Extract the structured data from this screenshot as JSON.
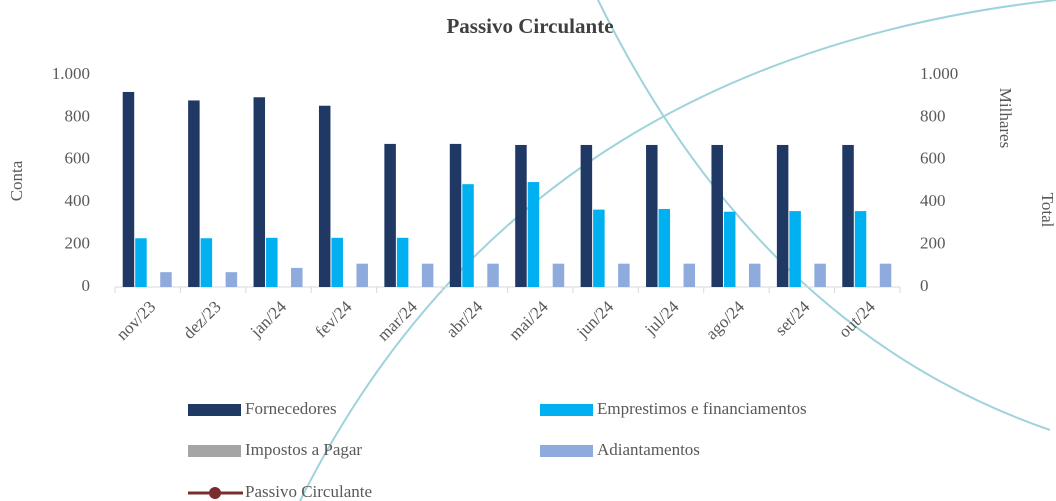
{
  "chart_data": {
    "type": "bar",
    "title": "Passivo Circulante",
    "categories": [
      "nov/23",
      "dez/23",
      "jan/24",
      "fev/24",
      "mar/24",
      "abr/24",
      "mai/24",
      "jun/24",
      "jul/24",
      "ago/24",
      "set/24",
      "out/24"
    ],
    "series": [
      {
        "name": "Fornecedores",
        "color": "#1f3864",
        "values": [
          920,
          880,
          895,
          855,
          675,
          675,
          670,
          670,
          670,
          670,
          670,
          670
        ]
      },
      {
        "name": "Emprestimos e financiamentos",
        "color": "#00b0f0",
        "values": [
          230,
          230,
          232,
          232,
          232,
          485,
          495,
          365,
          368,
          355,
          358,
          358
        ]
      },
      {
        "name": "Impostos a Pagar",
        "color": "#a5a5a5",
        "values": [
          0,
          0,
          0,
          0,
          0,
          0,
          0,
          0,
          0,
          0,
          0,
          0
        ]
      },
      {
        "name": "Adiantamentos",
        "color": "#8faadc",
        "values": [
          70,
          70,
          90,
          110,
          110,
          110,
          110,
          110,
          110,
          110,
          110,
          110
        ]
      },
      {
        "name": "Passivo Circulante",
        "type": "line",
        "axis": "y2",
        "color": "#7b2c2c",
        "values": [
          null,
          null,
          null,
          null,
          null,
          null,
          null,
          null,
          null,
          null,
          null,
          null
        ]
      }
    ],
    "y_label": "Conta",
    "y2_label": "Milhares",
    "y3_label": "Total",
    "ylim": [
      0,
      1000
    ],
    "yticks": [
      0,
      200,
      400,
      600,
      800,
      {
        "value": 1000,
        "label": "1.000"
      }
    ],
    "y2lim": [
      0,
      1000
    ],
    "y2ticks": [
      0,
      200,
      400,
      600,
      800,
      {
        "value": 1000,
        "label": "1.000"
      }
    ]
  }
}
